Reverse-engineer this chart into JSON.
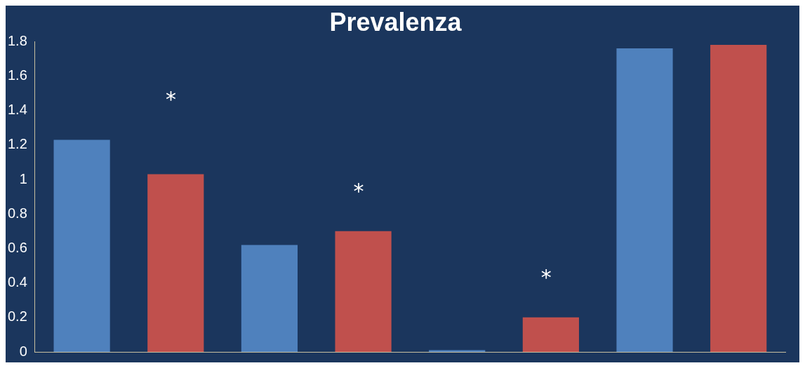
{
  "chart_data": {
    "type": "bar",
    "title": "Prevalenza",
    "categories": [
      null,
      null,
      null,
      null
    ],
    "series": [
      {
        "color": "#4f81bd",
        "values": [
          1.23,
          0.62,
          0.01,
          1.76
        ]
      },
      {
        "color": "#c0504d",
        "values": [
          1.03,
          0.7,
          0.2,
          1.78
        ]
      }
    ],
    "ylim": [
      0,
      1.8
    ],
    "yticks": [
      0,
      0.2,
      0.4,
      0.6,
      0.8,
      1,
      1.2,
      1.4,
      1.6,
      1.8
    ],
    "grid": false,
    "legend": false,
    "annotations": [
      "*",
      "*",
      "*"
    ]
  }
}
